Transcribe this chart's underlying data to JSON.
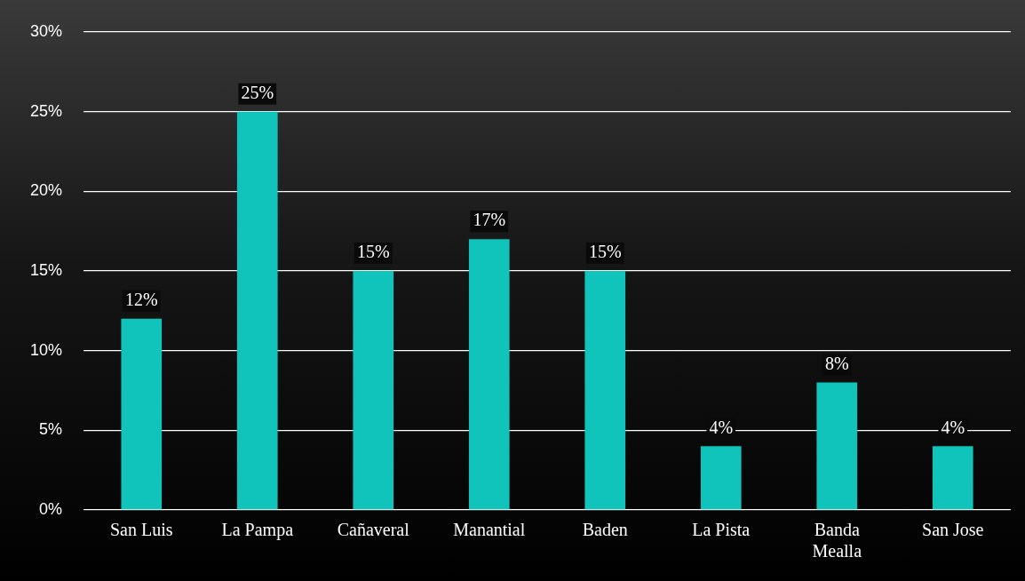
{
  "chart_data": {
    "type": "bar",
    "categories": [
      "San Luis",
      "La Pampa",
      "Cañaveral",
      "Manantial",
      "Baden",
      "La Pista",
      "Banda Mealla",
      "San Jose"
    ],
    "values": [
      12,
      25,
      15,
      17,
      15,
      4,
      8,
      4
    ],
    "value_labels": [
      "12%",
      "25%",
      "15%",
      "17%",
      "15%",
      "4%",
      "8%",
      "4%"
    ],
    "color": "#10c4bc",
    "ylim": [
      0,
      30
    ],
    "yticks": [
      {
        "value": 0,
        "label": "0%"
      },
      {
        "value": 5,
        "label": "5%"
      },
      {
        "value": 10,
        "label": "10%"
      },
      {
        "value": 15,
        "label": "15%"
      },
      {
        "value": 20,
        "label": "20%"
      },
      {
        "value": 25,
        "label": "25%"
      },
      {
        "value": 30,
        "label": "30%"
      }
    ],
    "grid": "y",
    "legend": false
  }
}
